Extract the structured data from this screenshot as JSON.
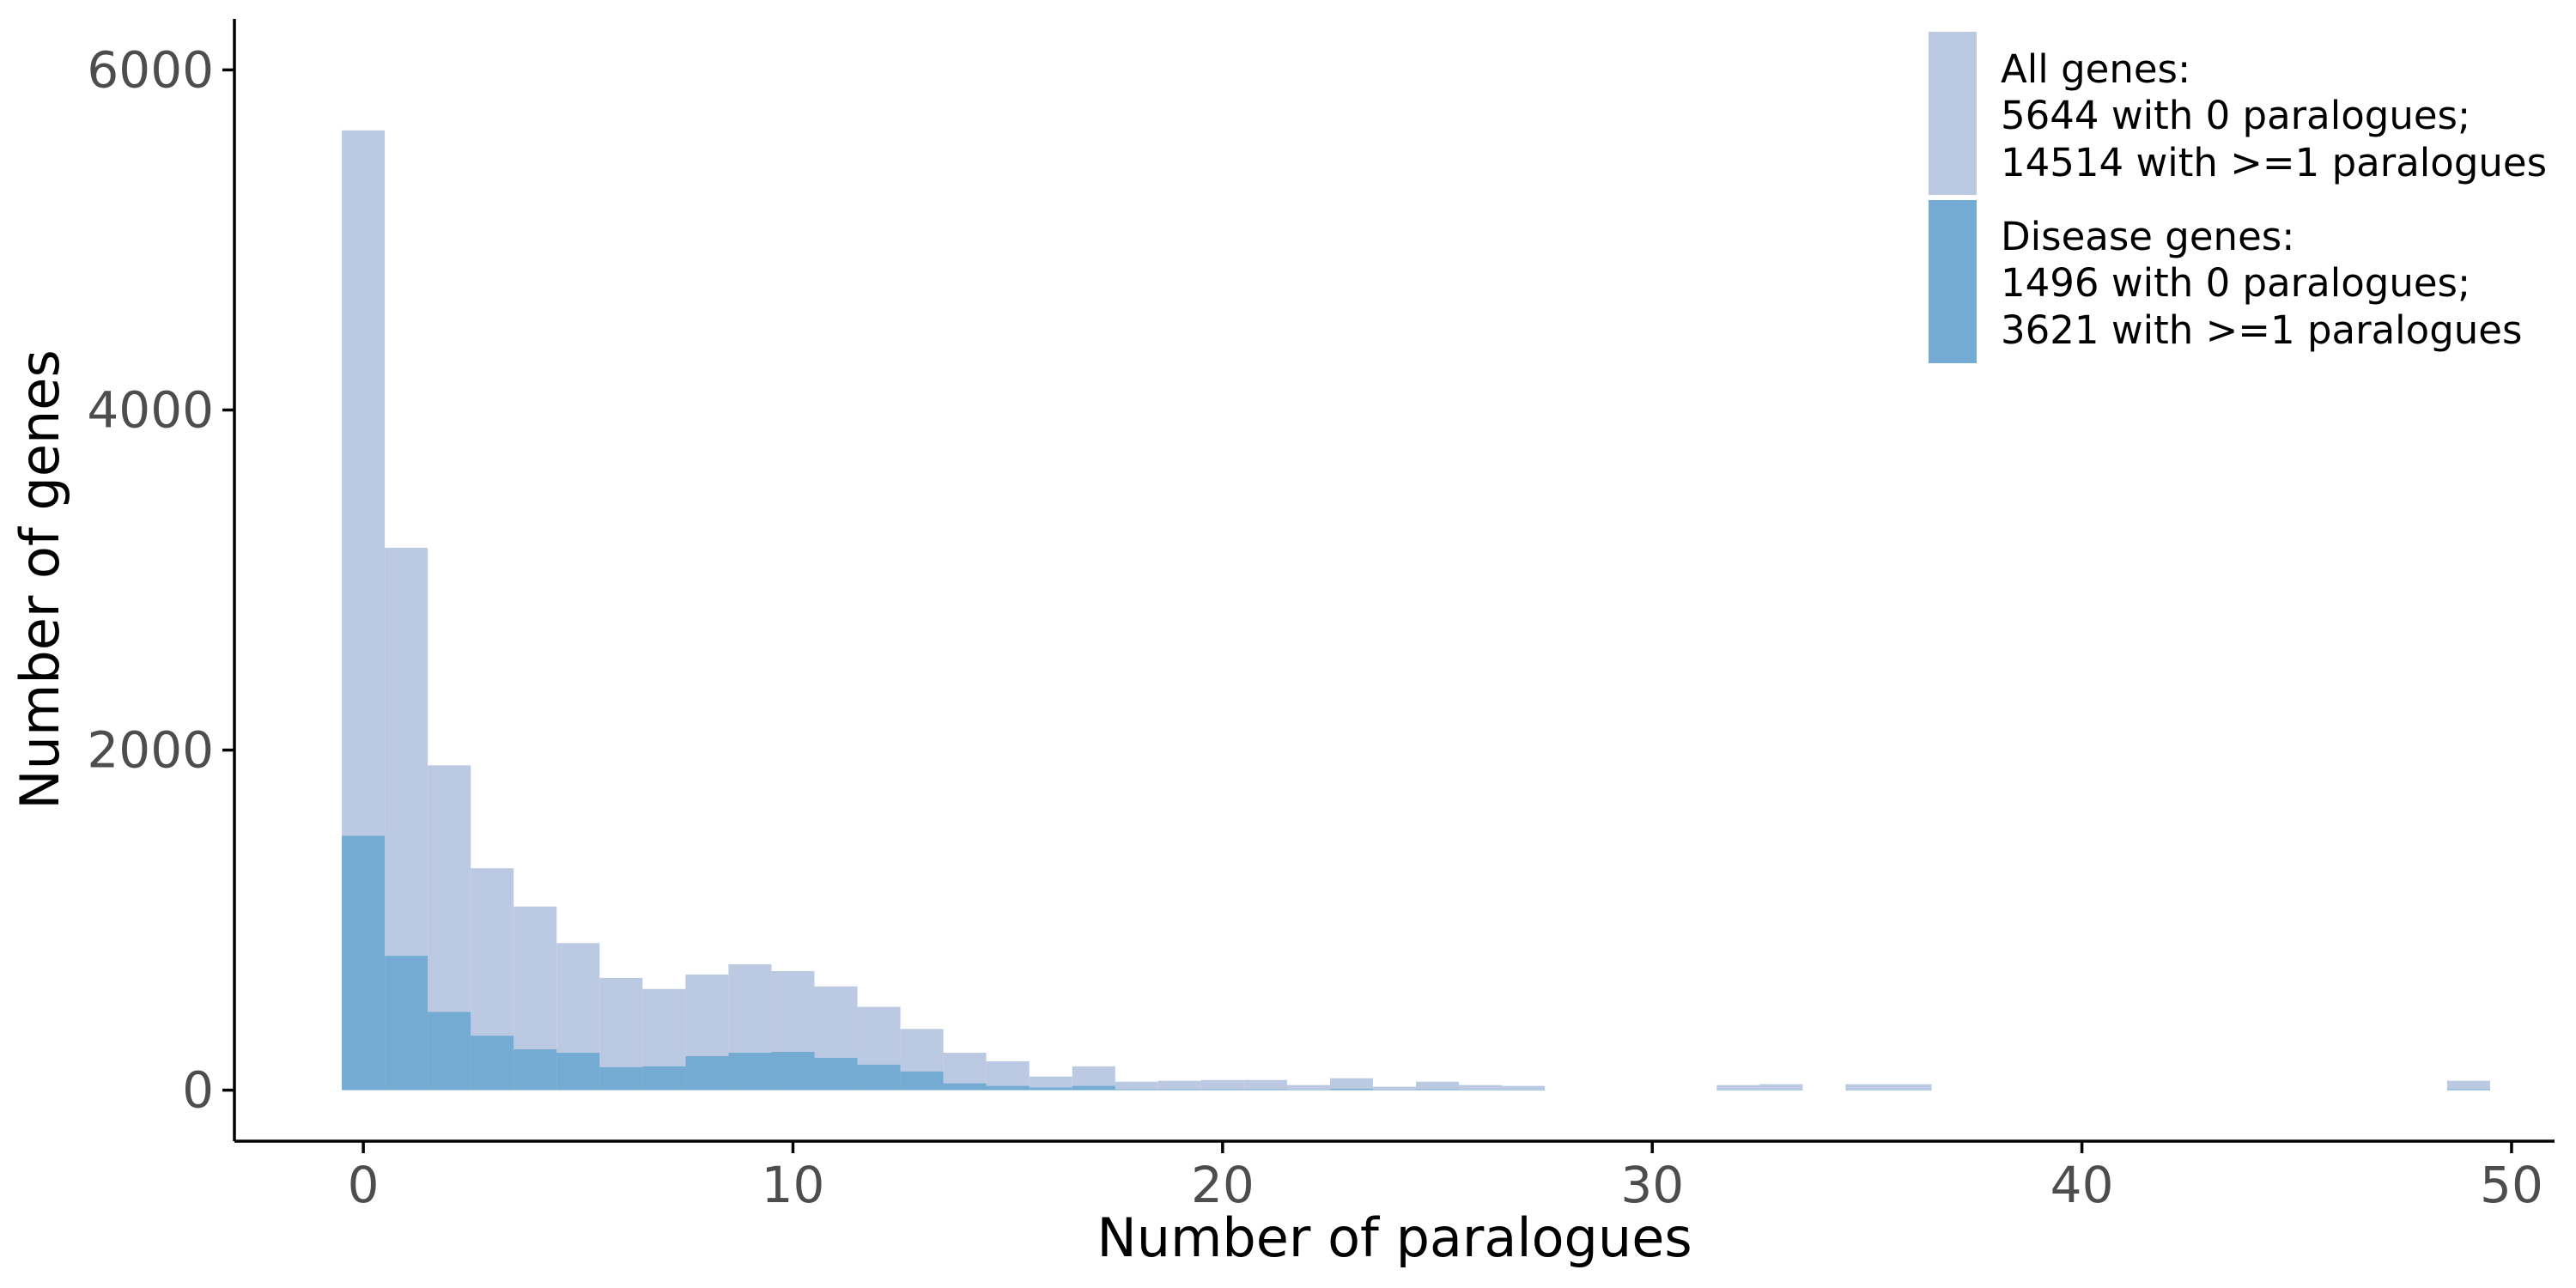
{
  "colors": {
    "all": "#bcc9e3",
    "disease": "#74abd2",
    "axis": "#000000",
    "tick_text": "#4d4d4d"
  },
  "chart_data": {
    "type": "bar",
    "subtype": "overlaid-histogram",
    "xlabel": "Number of paralogues",
    "ylabel": "Number of genes",
    "xlim": [
      -3,
      51
    ],
    "ylim": [
      -300,
      6300
    ],
    "xticks": [
      0,
      10,
      20,
      30,
      40,
      50
    ],
    "yticks": [
      0,
      2000,
      4000,
      6000
    ],
    "grid": false,
    "legend_position": "top-right",
    "legend": [
      {
        "key": "all",
        "lines": [
          "All genes:",
          "5644 with 0 paralogues;",
          "14514 with >=1 paralogues"
        ]
      },
      {
        "key": "disease",
        "lines": [
          "Disease genes:",
          "1496 with 0 paralogues;",
          "3621 with >=1 paralogues"
        ]
      }
    ],
    "x": [
      0,
      1,
      2,
      3,
      4,
      5,
      6,
      7,
      8,
      9,
      10,
      11,
      12,
      13,
      14,
      15,
      16,
      17,
      18,
      19,
      20,
      21,
      22,
      23,
      24,
      25,
      26,
      27,
      28,
      29,
      30,
      31,
      32,
      33,
      34,
      35,
      36,
      37,
      38,
      39,
      40,
      41,
      42,
      43,
      44,
      45,
      46,
      47,
      48,
      49
    ],
    "series": [
      {
        "key": "all",
        "values": [
          5644,
          3190,
          1910,
          1305,
          1080,
          865,
          660,
          595,
          680,
          740,
          700,
          610,
          490,
          360,
          220,
          170,
          80,
          140,
          50,
          55,
          60,
          60,
          30,
          70,
          20,
          50,
          30,
          25,
          0,
          0,
          0,
          0,
          30,
          35,
          0,
          35,
          35,
          0,
          0,
          0,
          0,
          0,
          0,
          0,
          0,
          0,
          0,
          0,
          0,
          55
        ]
      },
      {
        "key": "disease",
        "values": [
          1496,
          790,
          460,
          320,
          240,
          220,
          135,
          140,
          200,
          220,
          225,
          190,
          150,
          110,
          40,
          25,
          15,
          25,
          5,
          5,
          5,
          5,
          3,
          8,
          3,
          5,
          3,
          3,
          0,
          0,
          0,
          0,
          3,
          3,
          0,
          3,
          3,
          0,
          0,
          0,
          0,
          0,
          0,
          0,
          0,
          0,
          0,
          0,
          0,
          5
        ]
      }
    ]
  }
}
